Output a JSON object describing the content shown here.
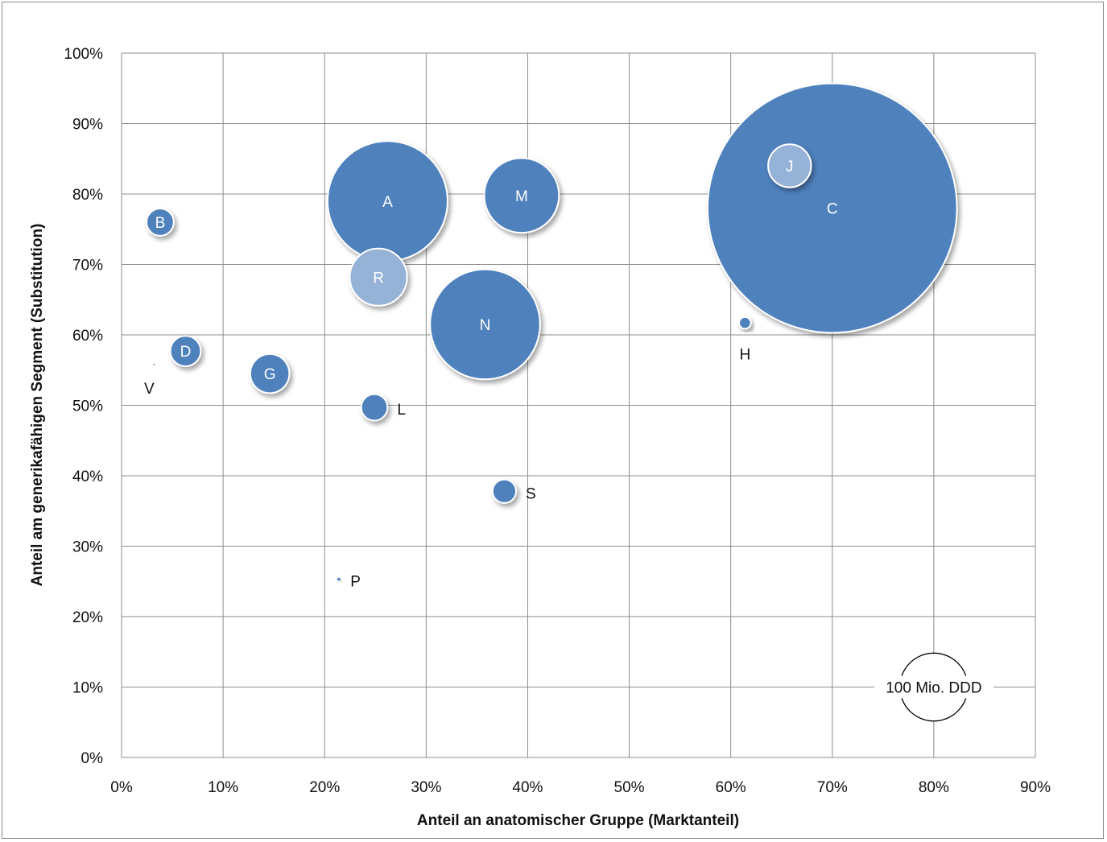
{
  "chart_data": {
    "type": "bubble",
    "xlabel": "Anteil an anatomischer Gruppe (Marktanteil)",
    "ylabel": "Anteil am generikafähigen Segment (Substitution)",
    "xlim": [
      0,
      90
    ],
    "ylim": [
      0,
      100
    ],
    "x_ticks": [
      "0%",
      "10%",
      "20%",
      "30%",
      "40%",
      "50%",
      "60%",
      "70%",
      "80%",
      "90%"
    ],
    "y_ticks": [
      "0%",
      "10%",
      "20%",
      "30%",
      "40%",
      "50%",
      "60%",
      "70%",
      "80%",
      "90%",
      "100%"
    ],
    "grid": true,
    "reference_bubble": {
      "label": "100 Mio. DDD",
      "x": 80,
      "y": 10,
      "size": 100
    },
    "points": [
      {
        "label": "C",
        "x": 70.0,
        "y": 78.0,
        "size": 1346,
        "highlight": false,
        "label_position": "inside"
      },
      {
        "label": "A",
        "x": 26.2,
        "y": 79.0,
        "size": 312,
        "highlight": false,
        "label_position": "inside"
      },
      {
        "label": "N",
        "x": 35.8,
        "y": 61.5,
        "size": 262,
        "highlight": false,
        "label_position": "inside"
      },
      {
        "label": "M",
        "x": 39.4,
        "y": 79.8,
        "size": 121,
        "highlight": false,
        "label_position": "inside"
      },
      {
        "label": "R",
        "x": 25.3,
        "y": 68.2,
        "size": 71,
        "highlight": true,
        "label_position": "inside"
      },
      {
        "label": "J",
        "x": 65.8,
        "y": 84.0,
        "size": 40,
        "highlight": true,
        "label_position": "inside"
      },
      {
        "label": "G",
        "x": 14.6,
        "y": 54.5,
        "size": 33,
        "highlight": false,
        "label_position": "inside"
      },
      {
        "label": "D",
        "x": 6.3,
        "y": 57.7,
        "size": 20,
        "highlight": false,
        "label_position": "inside"
      },
      {
        "label": "B",
        "x": 3.8,
        "y": 76.0,
        "size": 16,
        "highlight": false,
        "label_position": "inside"
      },
      {
        "label": "L",
        "x": 24.9,
        "y": 49.7,
        "size": 15,
        "highlight": false,
        "label_position": "right"
      },
      {
        "label": "S",
        "x": 37.7,
        "y": 37.8,
        "size": 12,
        "highlight": false,
        "label_position": "right"
      },
      {
        "label": "H",
        "x": 61.4,
        "y": 61.7,
        "size": 3,
        "highlight": false,
        "label_position": "below"
      },
      {
        "label": "P",
        "x": 21.4,
        "y": 25.3,
        "size": 0.3,
        "highlight": false,
        "label_position": "right"
      },
      {
        "label": "V",
        "x": 3.2,
        "y": 55.8,
        "size": 0.1,
        "highlight": false,
        "label_position": "below-left"
      }
    ],
    "colors": {
      "bubble": "#4f81bd",
      "highlight": "#95b3d7",
      "grid": "#8c8c8c",
      "bubble_stroke": "#ffffff"
    }
  }
}
